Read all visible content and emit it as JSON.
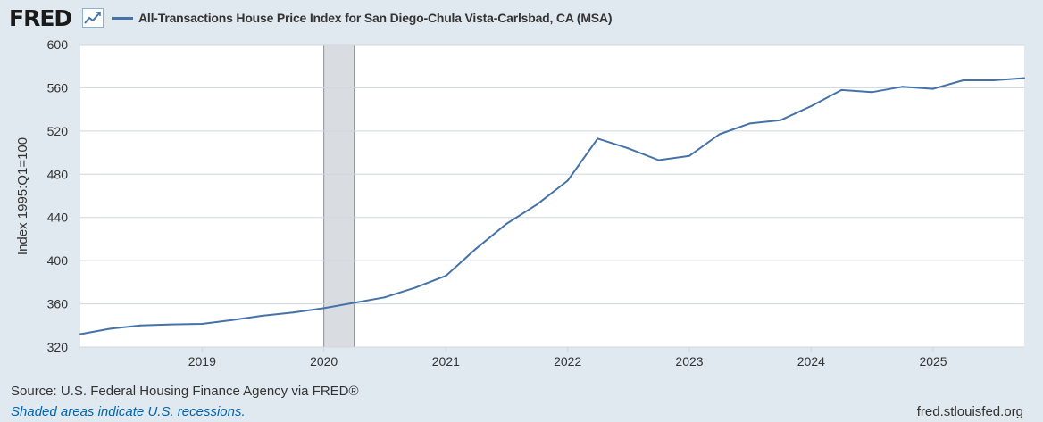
{
  "header": {
    "logo_text": "FRED",
    "logo_icon": "line-chart-icon",
    "legend_label": "All-Transactions House Price Index for San Diego-Chula Vista-Carlsbad, CA (MSA)"
  },
  "footer": {
    "source": "Source: U.S. Federal Housing Finance Agency via FRED®",
    "note": "Shaded areas indicate U.S. recessions.",
    "url": "fred.stlouisfed.org"
  },
  "colors": {
    "background": "#e1e9f0",
    "plot_background": "#ffffff",
    "series": "#4572a7",
    "recession": "#d9dde2",
    "link": "#0065b0"
  },
  "chart_data": {
    "type": "line",
    "ylabel": "Index 1995:Q1=100",
    "ylim": [
      320,
      600
    ],
    "yticks": [
      320,
      360,
      400,
      440,
      480,
      520,
      560,
      600
    ],
    "xlim": [
      "2018-01-01",
      "2025-10-01"
    ],
    "xticks": [
      "2019",
      "2020",
      "2021",
      "2022",
      "2023",
      "2024",
      "2025"
    ],
    "grid": true,
    "legend_position": "top-left",
    "recessions": [
      {
        "start": "2020-01-01",
        "end": "2020-04-01"
      }
    ],
    "series": [
      {
        "name": "All-Transactions House Price Index for San Diego-Chula Vista-Carlsbad, CA (MSA)",
        "x": [
          "2018-01-01",
          "2018-04-01",
          "2018-07-01",
          "2018-10-01",
          "2019-01-01",
          "2019-04-01",
          "2019-07-01",
          "2019-10-01",
          "2020-01-01",
          "2020-04-01",
          "2020-07-01",
          "2020-10-01",
          "2021-01-01",
          "2021-04-01",
          "2021-07-01",
          "2021-10-01",
          "2022-01-01",
          "2022-04-01",
          "2022-07-01",
          "2022-10-01",
          "2023-01-01",
          "2023-04-01",
          "2023-07-01",
          "2023-10-01",
          "2024-01-01",
          "2024-04-01",
          "2024-07-01",
          "2024-10-01",
          "2025-01-01",
          "2025-04-01",
          "2025-07-01",
          "2025-10-01"
        ],
        "values": [
          332,
          337,
          340,
          341,
          341.5,
          345,
          349,
          352,
          356,
          361,
          366,
          375,
          386,
          411,
          434,
          452,
          474,
          513,
          504,
          493,
          497,
          517,
          527,
          530,
          543,
          558,
          556,
          561,
          559,
          567,
          567,
          569
        ]
      }
    ]
  }
}
